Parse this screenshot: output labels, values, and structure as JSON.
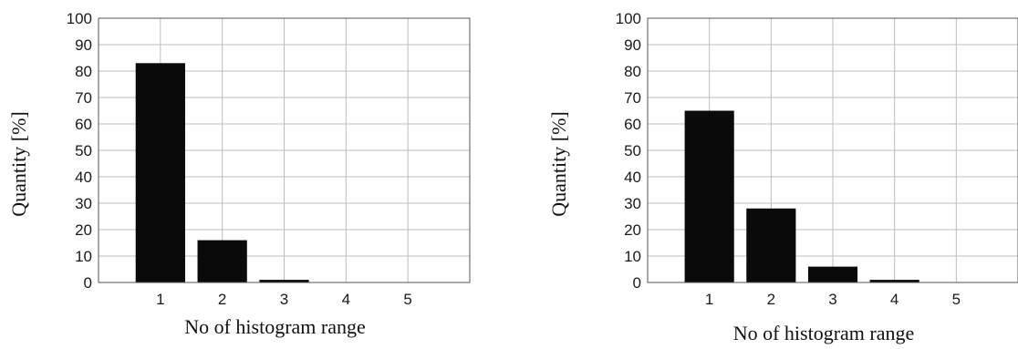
{
  "chart_data": [
    {
      "type": "bar",
      "categories": [
        "1",
        "2",
        "3",
        "4",
        "5"
      ],
      "values": [
        83,
        16,
        1,
        0,
        0
      ],
      "xlabel": "No of histogram range",
      "ylabel": "Quantity [%]",
      "ylim": [
        0,
        100
      ],
      "xlim": [
        0,
        6
      ],
      "yticks": [
        "0",
        "10",
        "20",
        "30",
        "40",
        "50",
        "60",
        "70",
        "80",
        "90",
        "100"
      ],
      "grid": true,
      "bar_color": "#0a0a0a"
    },
    {
      "type": "bar",
      "categories": [
        "1",
        "2",
        "3",
        "4",
        "5"
      ],
      "values": [
        65,
        28,
        6,
        1,
        0
      ],
      "xlabel": "No of histogram range",
      "ylabel": "Quantity [%]",
      "ylim": [
        0,
        100
      ],
      "xlim": [
        0,
        6
      ],
      "yticks": [
        "0",
        "10",
        "20",
        "30",
        "40",
        "50",
        "60",
        "70",
        "80",
        "90",
        "100"
      ],
      "grid": true,
      "bar_color": "#0a0a0a"
    }
  ]
}
